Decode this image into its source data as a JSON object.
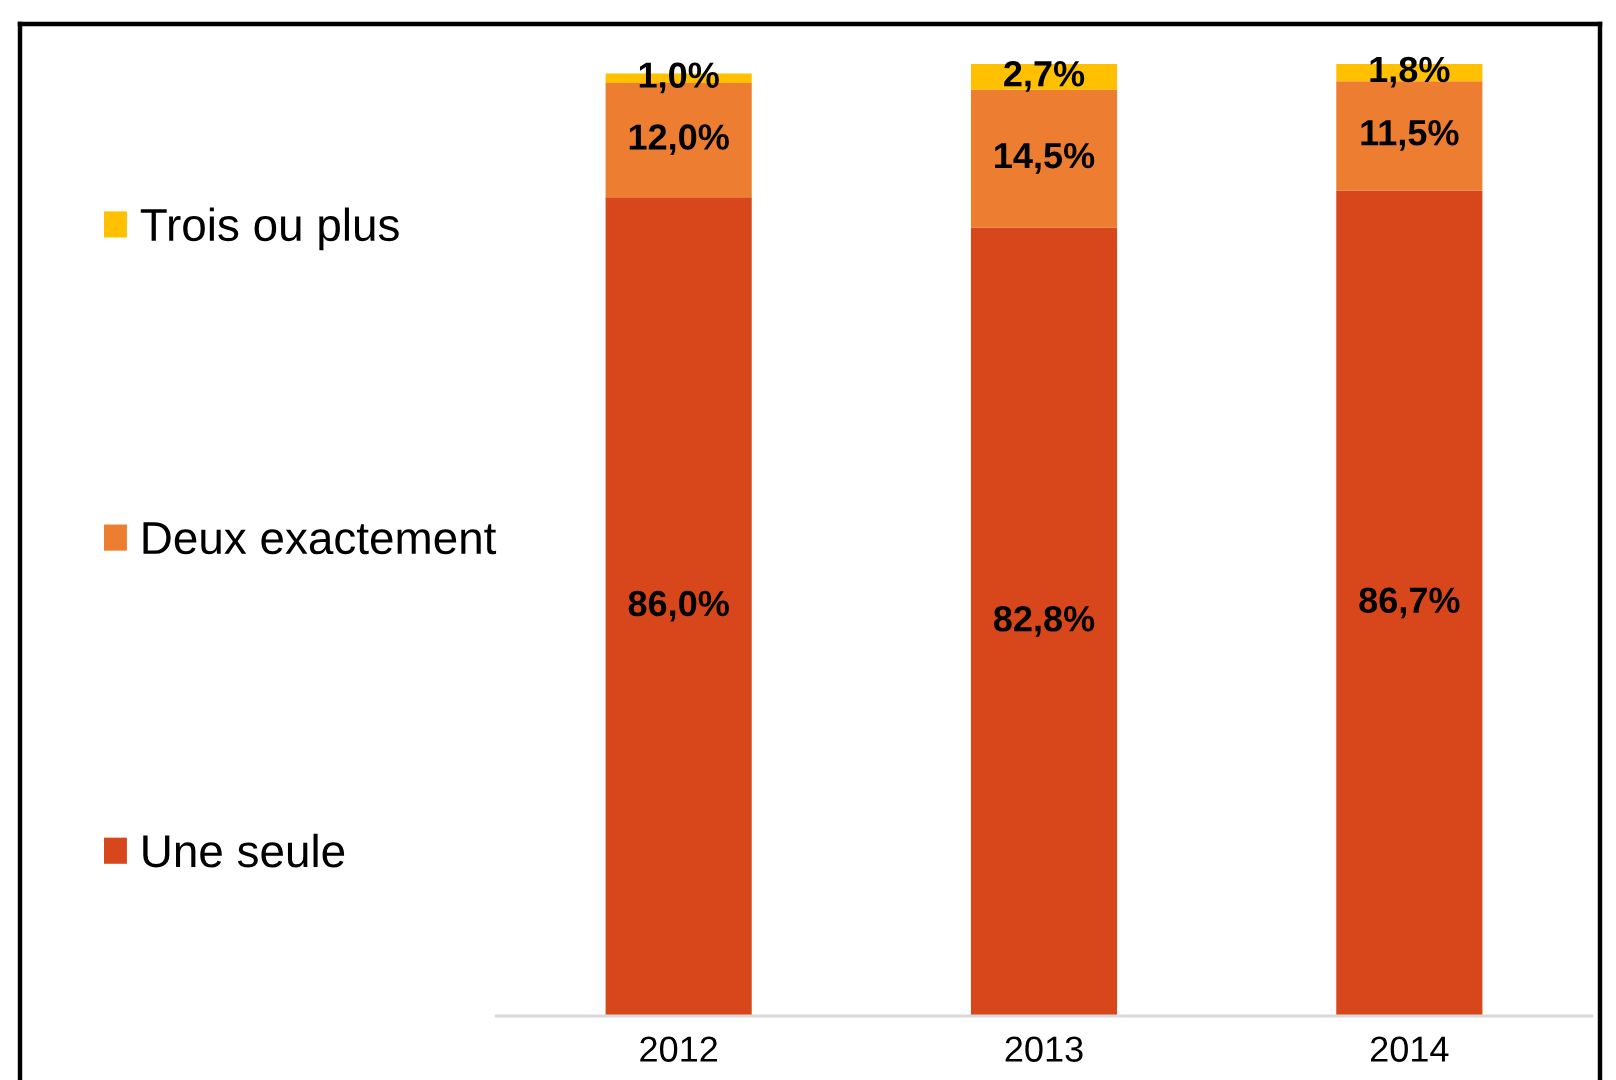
{
  "chart_data": {
    "type": "bar",
    "stacked": true,
    "categories": [
      "2012",
      "2013",
      "2014"
    ],
    "series": [
      {
        "name": "Une seule",
        "color": "#d8461b",
        "values": [
          86.0,
          82.8,
          86.7
        ],
        "value_labels": [
          "86,0%",
          "82,8%",
          "86,7%"
        ]
      },
      {
        "name": "Deux exactement",
        "color": "#ed7d31",
        "values": [
          12.0,
          14.5,
          11.5
        ],
        "value_labels": [
          "12,0%",
          "14,5%",
          "11,5%"
        ]
      },
      {
        "name": "Trois ou plus",
        "color": "#ffc000",
        "values": [
          1.0,
          2.7,
          1.8
        ],
        "value_labels": [
          "1,0%",
          "2,7%",
          "1,8%"
        ]
      }
    ],
    "ylim": [
      0,
      100
    ],
    "tick_labels": "x",
    "legend": "left"
  }
}
